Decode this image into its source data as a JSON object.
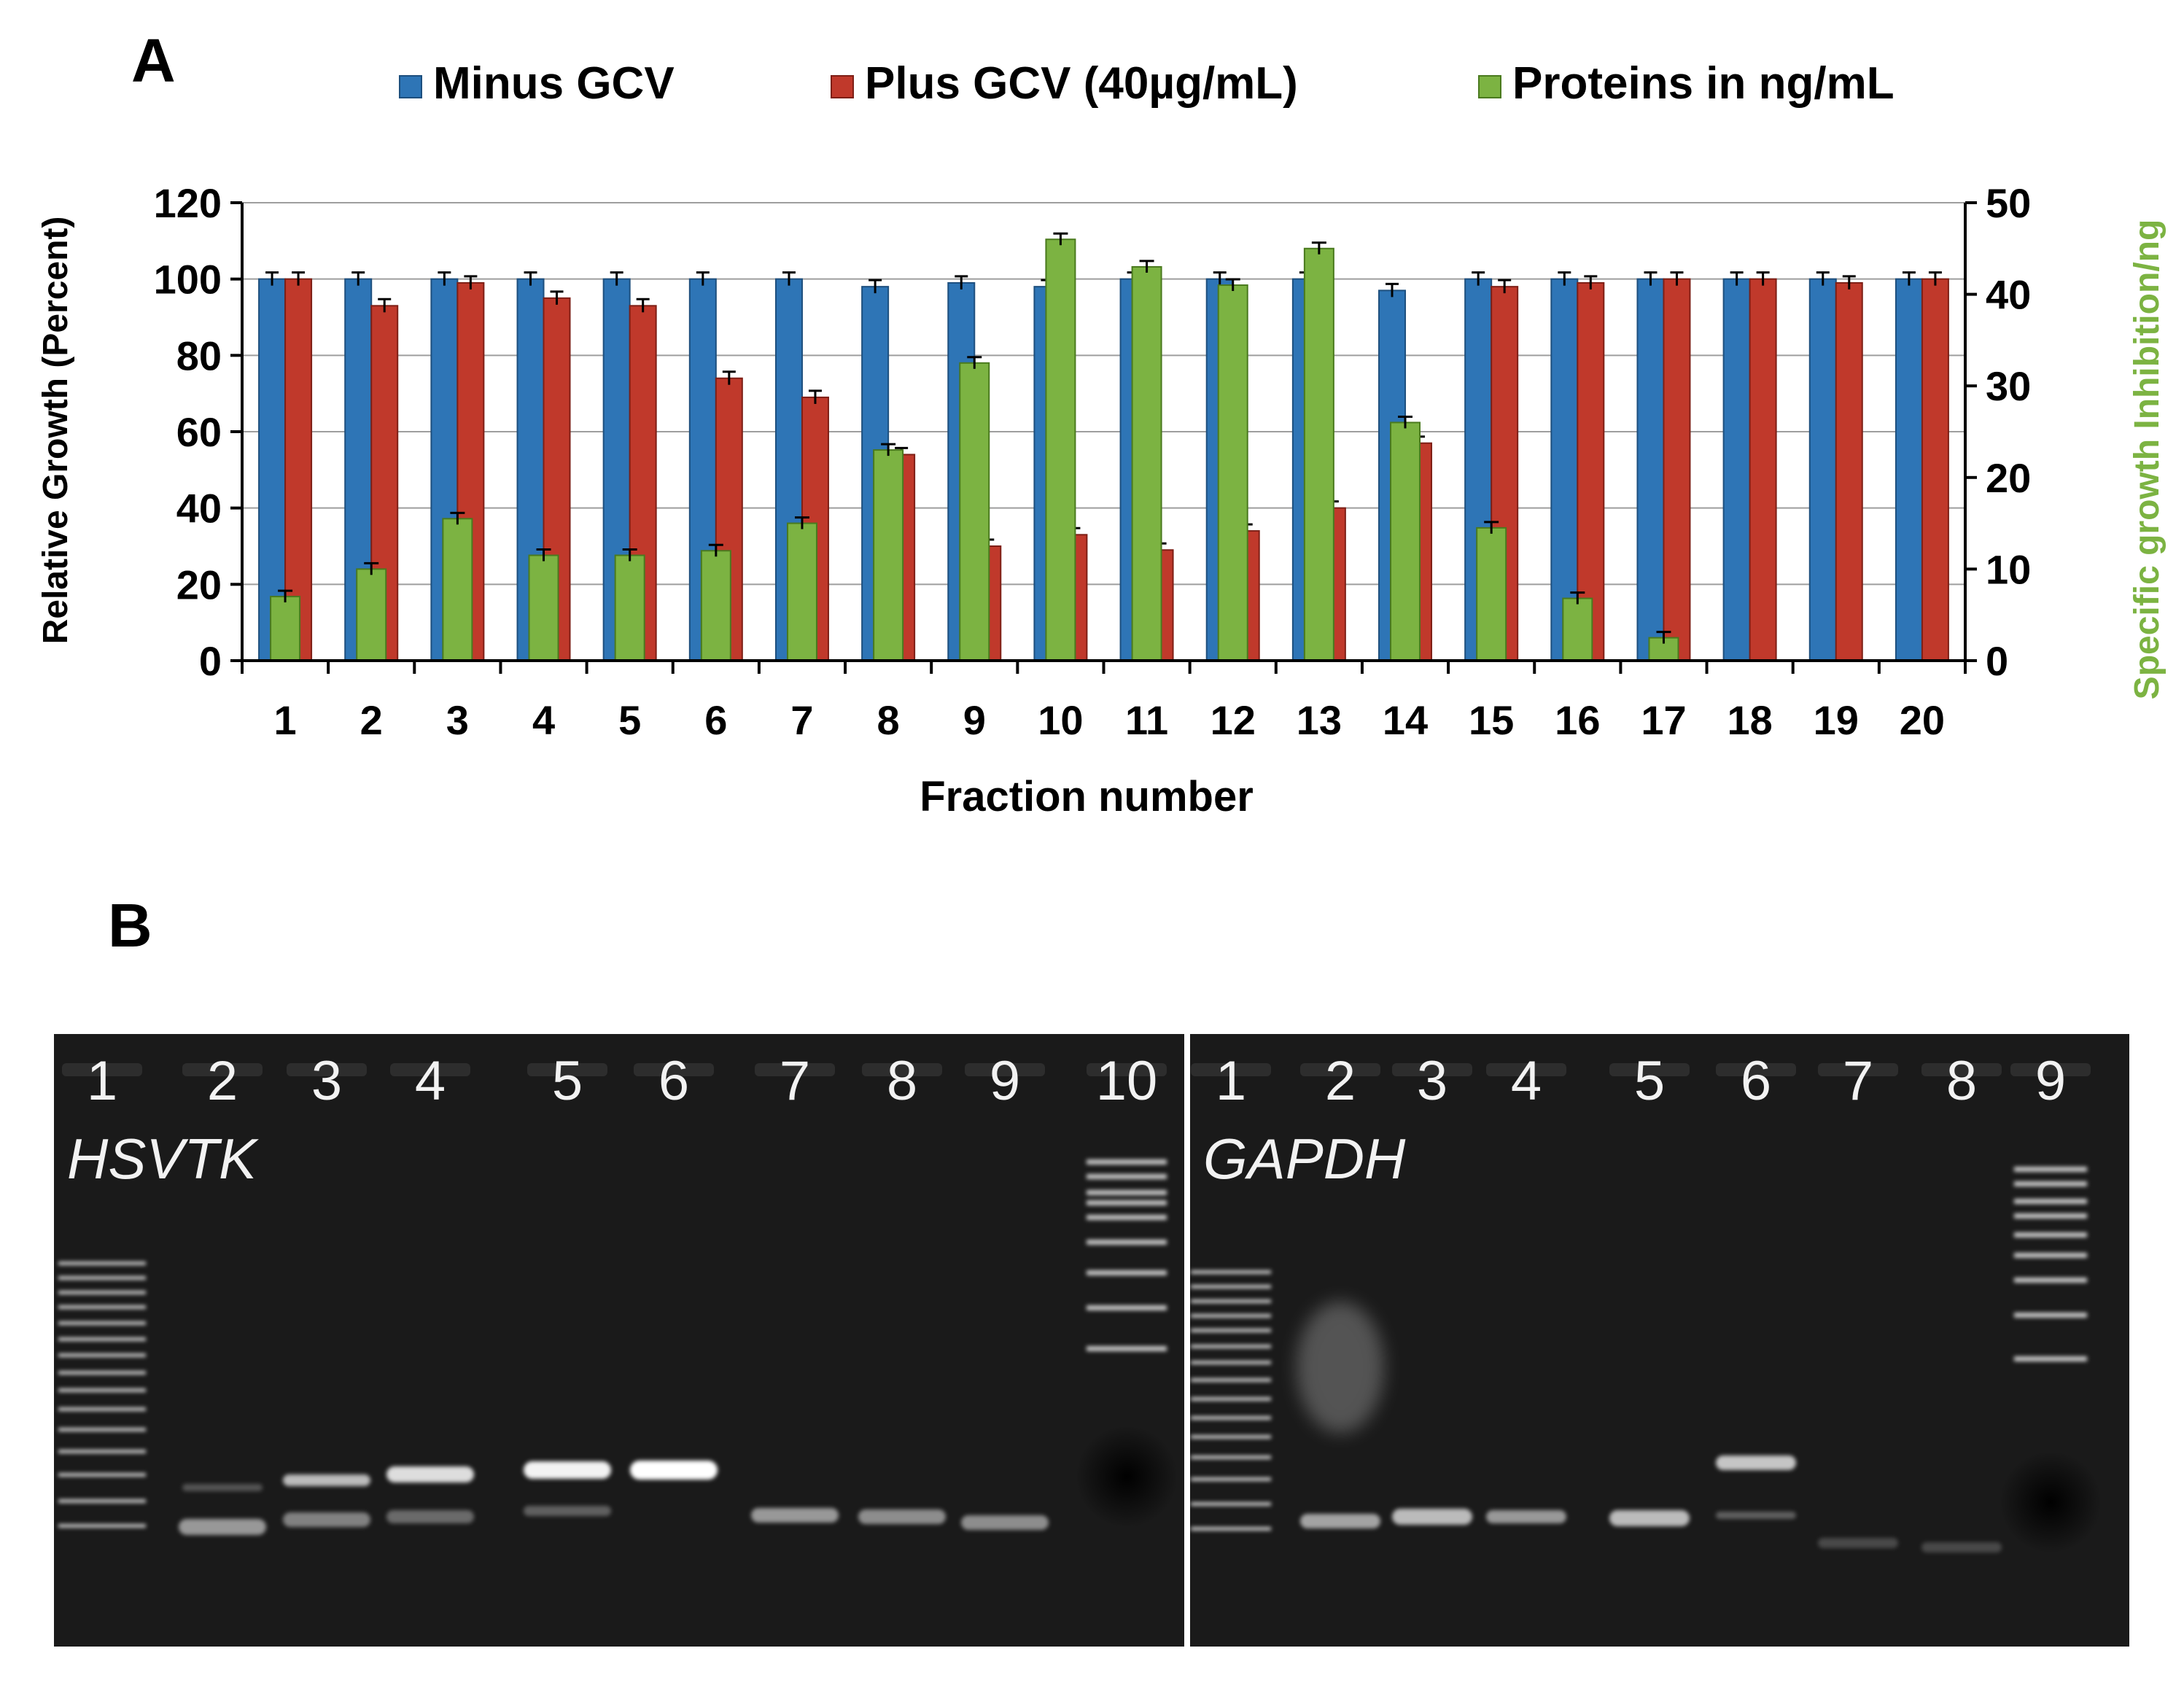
{
  "panel_a": {
    "label": "A",
    "legend": [
      {
        "label": "Minus GCV",
        "color": "#2e75b6"
      },
      {
        "label": "Plus GCV (40µg/mL)",
        "color": "#c0392b"
      },
      {
        "label": "Proteins in ng/mL",
        "color": "#7cb342"
      }
    ]
  },
  "panel_b": {
    "label": "B",
    "gels": [
      {
        "gene": "HSVTK",
        "lanes": [
          "1",
          "2",
          "3",
          "4",
          "5",
          "6",
          "7",
          "8",
          "9",
          "10"
        ]
      },
      {
        "gene": "GAPDH",
        "lanes": [
          "1",
          "2",
          "3",
          "4",
          "5",
          "6",
          "7",
          "8",
          "9"
        ]
      }
    ]
  },
  "chart_data": {
    "type": "bar",
    "xlabel": "Fraction number",
    "ylabel": "Relative Growth (Percent)",
    "y2label": "Specific growth Inhibition/ng",
    "ylim": [
      0,
      120
    ],
    "y2lim": [
      0,
      50
    ],
    "yticks": [
      0,
      20,
      40,
      60,
      80,
      100,
      120
    ],
    "y2ticks": [
      0,
      10,
      20,
      30,
      40,
      50
    ],
    "categories": [
      "1",
      "2",
      "3",
      "4",
      "5",
      "6",
      "7",
      "8",
      "9",
      "10",
      "11",
      "12",
      "13",
      "14",
      "15",
      "16",
      "17",
      "18",
      "19",
      "20"
    ],
    "grid": true,
    "legend_position": "top",
    "series": [
      {
        "name": "Minus GCV",
        "axis": "left",
        "color": "#2e75b6",
        "values": [
          100,
          100,
          100,
          100,
          100,
          100,
          100,
          98,
          99,
          98,
          100,
          100,
          100,
          97,
          100,
          100,
          100,
          100,
          100,
          100
        ]
      },
      {
        "name": "Plus GCV (40µg/mL)",
        "axis": "left",
        "color": "#c0392b",
        "values": [
          100,
          93,
          99,
          95,
          93,
          74,
          69,
          54,
          30,
          33,
          29,
          34,
          40,
          57,
          98,
          99,
          100,
          100,
          99,
          100
        ]
      },
      {
        "name": "Proteins in ng/mL",
        "axis": "right",
        "color": "#7cb342",
        "values": [
          7,
          10,
          15.5,
          11.5,
          11.5,
          12,
          15,
          23,
          32.5,
          46,
          43,
          41,
          45,
          26,
          14.5,
          6.8,
          2.5,
          0,
          0,
          0
        ]
      }
    ]
  }
}
